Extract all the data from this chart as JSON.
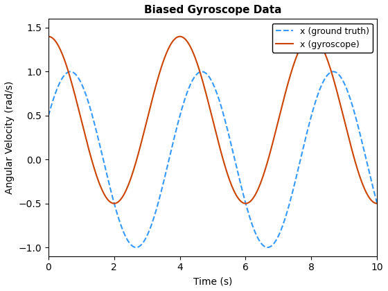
{
  "title": "Biased Gyroscope Data",
  "xlabel": "Time (s)",
  "ylabel": "Angular Velocity (rad/s)",
  "xlim": [
    0,
    10
  ],
  "ylim": [
    -1.1,
    1.6
  ],
  "yticks": [
    -1.0,
    -0.5,
    0.0,
    0.5,
    1.0,
    1.5
  ],
  "xticks": [
    0,
    2,
    4,
    6,
    8,
    10
  ],
  "ground_truth_amplitude": 1.0,
  "ground_truth_frequency": 0.25,
  "ground_truth_phase": 0.52,
  "ground_truth_bias": 0.0,
  "gyroscope_amplitude": 0.95,
  "gyroscope_frequency": 0.25,
  "gyroscope_phase": 1.57,
  "gyroscope_bias": 0.45,
  "ground_truth_color": "#3399FF",
  "gyroscope_color": "#CC4400",
  "ground_truth_linestyle": "--",
  "gyroscope_linestyle": "-",
  "ground_truth_linewidth": 1.5,
  "gyroscope_linewidth": 1.5,
  "legend_labels": [
    "x (ground truth)",
    "x (gyroscope)"
  ],
  "background_color": "#ffffff",
  "title_fontsize": 11,
  "label_fontsize": 10,
  "legend_fontsize": 9,
  "tick_fontsize": 10
}
